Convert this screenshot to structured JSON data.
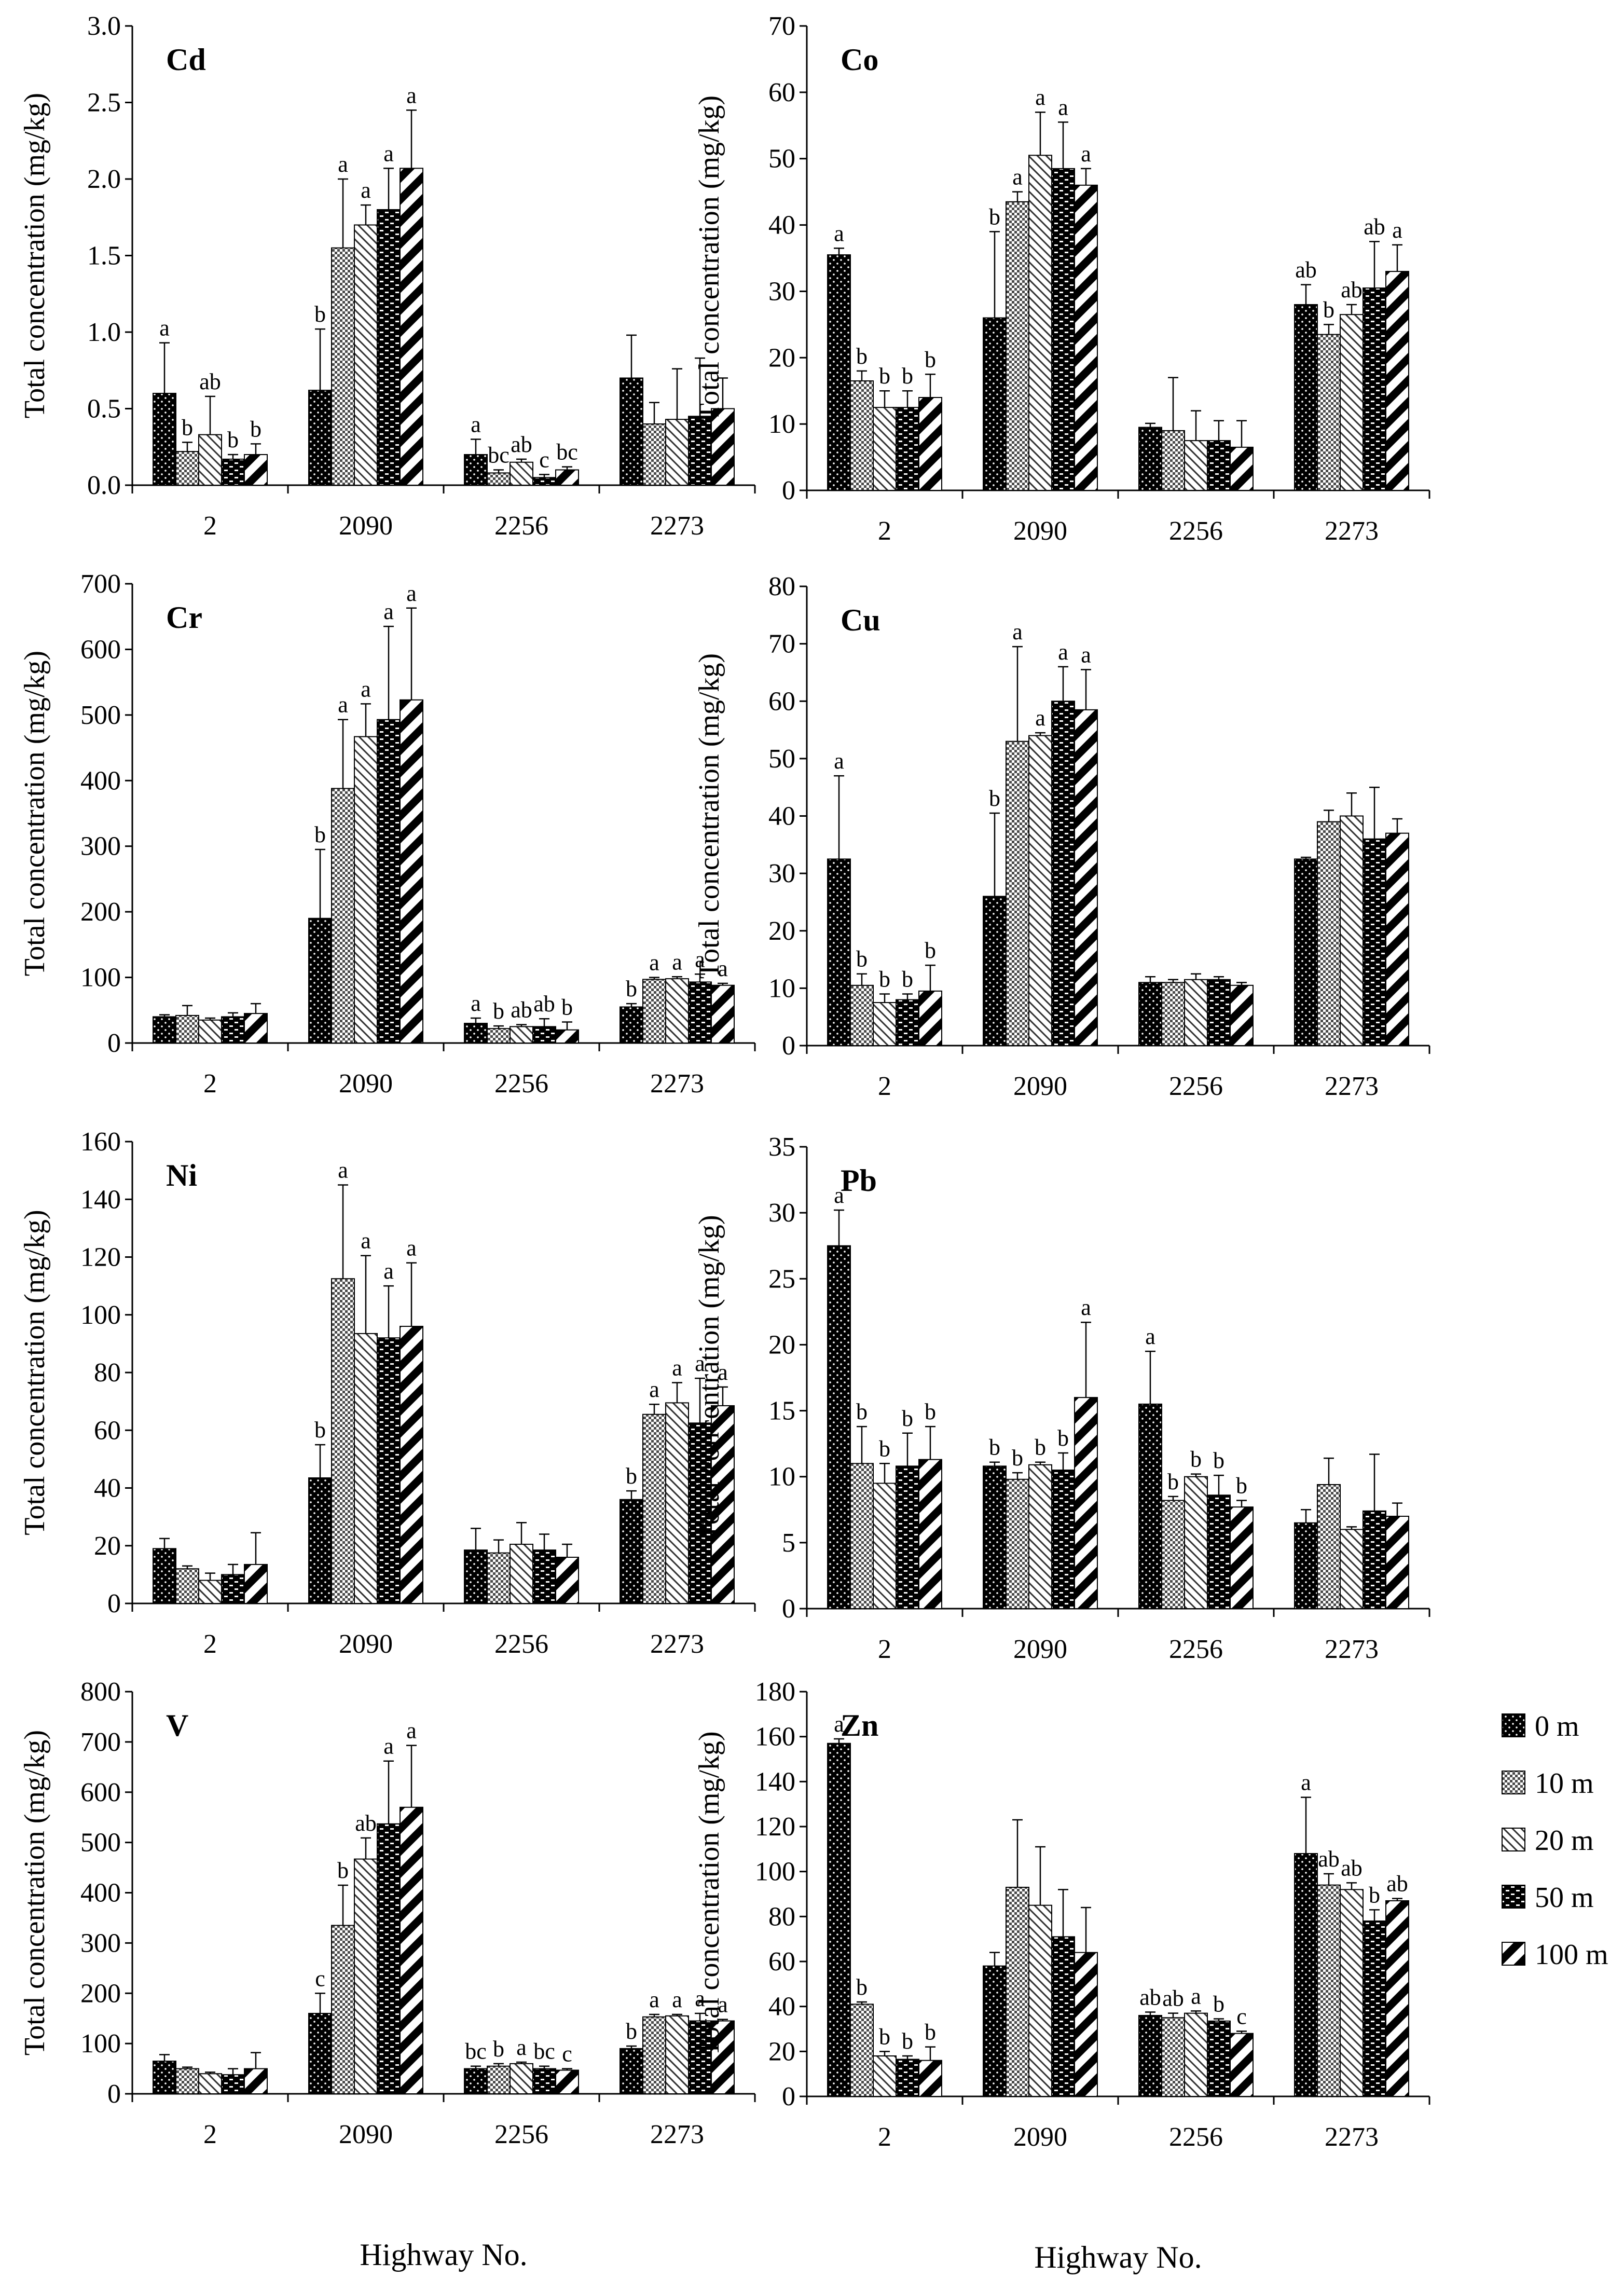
{
  "x_axis_label": "Highway No.",
  "legend": [
    {
      "label": "0 m",
      "pattern": "dots"
    },
    {
      "label": "10 m",
      "pattern": "check"
    },
    {
      "label": "20 m",
      "pattern": "diag"
    },
    {
      "label": "50 m",
      "pattern": "brick"
    },
    {
      "label": "100 m",
      "pattern": "stripe"
    }
  ],
  "chart_data": [
    {
      "type": "bar",
      "title": "Cd",
      "ylabel": "Total concentration (mg/kg)",
      "xlabel": "",
      "categories": [
        "2",
        "2090",
        "2256",
        "2273"
      ],
      "ylim": [
        0,
        3.0
      ],
      "yticks": [
        "0.0",
        "0.5",
        "1.0",
        "1.5",
        "2.0",
        "2.5",
        "3.0"
      ],
      "series": [
        {
          "name": "0 m",
          "values": [
            0.6,
            0.62,
            0.2,
            0.7
          ],
          "errors": [
            0.33,
            0.4,
            0.1,
            0.28
          ],
          "labels": [
            "a",
            "b",
            "a",
            ""
          ]
        },
        {
          "name": "10 m",
          "values": [
            0.22,
            1.55,
            0.08,
            0.4
          ],
          "errors": [
            0.06,
            0.45,
            0.02,
            0.14
          ],
          "labels": [
            "b",
            "a",
            "bc",
            ""
          ]
        },
        {
          "name": "20 m",
          "values": [
            0.33,
            1.7,
            0.15,
            0.43
          ],
          "errors": [
            0.25,
            0.13,
            0.02,
            0.33
          ],
          "labels": [
            "ab",
            "a",
            "ab",
            ""
          ]
        },
        {
          "name": "50 m",
          "values": [
            0.17,
            1.8,
            0.05,
            0.45
          ],
          "errors": [
            0.03,
            0.27,
            0.02,
            0.38
          ],
          "labels": [
            "b",
            "a",
            "c",
            ""
          ]
        },
        {
          "name": "100 m",
          "values": [
            0.2,
            2.07,
            0.1,
            0.5
          ],
          "errors": [
            0.07,
            0.38,
            0.02,
            0.2
          ],
          "labels": [
            "b",
            "a",
            "bc",
            ""
          ]
        }
      ]
    },
    {
      "type": "bar",
      "title": "Co",
      "ylabel": "Total concentration (mg/kg)",
      "xlabel": "",
      "categories": [
        "2",
        "2090",
        "2256",
        "2273"
      ],
      "ylim": [
        0,
        70
      ],
      "yticks": [
        "0",
        "10",
        "20",
        "30",
        "40",
        "50",
        "60",
        "70"
      ],
      "series": [
        {
          "name": "0 m",
          "values": [
            35.5,
            26,
            9.5,
            28
          ],
          "errors": [
            1.0,
            13.0,
            0.6,
            3.0
          ],
          "labels": [
            "a",
            "b",
            "",
            "ab"
          ]
        },
        {
          "name": "10 m",
          "values": [
            16.5,
            43.5,
            9.0,
            23.5
          ],
          "errors": [
            1.5,
            1.5,
            8.0,
            1.5
          ],
          "labels": [
            "b",
            "a",
            "",
            "b"
          ]
        },
        {
          "name": "20 m",
          "values": [
            12.5,
            50.5,
            7.5,
            26.5
          ],
          "errors": [
            2.5,
            6.5,
            4.5,
            1.5
          ],
          "labels": [
            "b",
            "a",
            "",
            "ab"
          ]
        },
        {
          "name": "50 m",
          "values": [
            12.5,
            48.5,
            7.5,
            30.5
          ],
          "errors": [
            2.5,
            7.0,
            3.0,
            7.0
          ],
          "labels": [
            "b",
            "a",
            "",
            "ab"
          ]
        },
        {
          "name": "100 m",
          "values": [
            14.0,
            46.0,
            6.5,
            33.0
          ],
          "errors": [
            3.5,
            2.5,
            4.0,
            4.0
          ],
          "labels": [
            "b",
            "a",
            "",
            "a"
          ]
        }
      ]
    },
    {
      "type": "bar",
      "title": "Cr",
      "ylabel": "Total concentration (mg/kg)",
      "xlabel": "",
      "categories": [
        "2",
        "2090",
        "2256",
        "2273"
      ],
      "ylim": [
        0,
        700
      ],
      "yticks": [
        "0",
        "100",
        "200",
        "300",
        "400",
        "500",
        "600",
        "700"
      ],
      "series": [
        {
          "name": "0 m",
          "values": [
            40,
            190,
            30,
            55
          ],
          "errors": [
            3,
            105,
            8,
            5
          ],
          "labels": [
            "",
            "b",
            "a",
            "b"
          ]
        },
        {
          "name": "10 m",
          "values": [
            42,
            388,
            22,
            97
          ],
          "errors": [
            15,
            105,
            4,
            3
          ],
          "labels": [
            "",
            "a",
            "b",
            "a"
          ]
        },
        {
          "name": "20 m",
          "values": [
            35,
            467,
            25,
            98
          ],
          "errors": [
            3,
            50,
            3,
            3
          ],
          "labels": [
            "",
            "a",
            "ab",
            "a"
          ]
        },
        {
          "name": "50 m",
          "values": [
            40,
            493,
            25,
            93
          ],
          "errors": [
            6,
            142,
            12,
            12
          ],
          "labels": [
            "",
            "a",
            "ab",
            "a"
          ]
        },
        {
          "name": "100 m",
          "values": [
            45,
            523,
            20,
            88
          ],
          "errors": [
            15,
            140,
            12,
            3
          ],
          "labels": [
            "",
            "a",
            "b",
            "a"
          ]
        }
      ]
    },
    {
      "type": "bar",
      "title": "Cu",
      "ylabel": "Total concentration (mg/kg)",
      "xlabel": "",
      "categories": [
        "2",
        "2090",
        "2256",
        "2273"
      ],
      "ylim": [
        0,
        80
      ],
      "yticks": [
        "0",
        "10",
        "20",
        "30",
        "40",
        "50",
        "60",
        "70",
        "80"
      ],
      "series": [
        {
          "name": "0 m",
          "values": [
            32.5,
            26,
            11,
            32.5
          ],
          "errors": [
            14.5,
            14.5,
            1.0,
            0.3
          ],
          "labels": [
            "a",
            "b",
            "",
            ""
          ]
        },
        {
          "name": "10 m",
          "values": [
            10.5,
            53,
            11,
            39
          ],
          "errors": [
            2.0,
            16.5,
            0.5,
            2.0
          ],
          "labels": [
            "b",
            "a",
            "",
            ""
          ]
        },
        {
          "name": "20 m",
          "values": [
            7.5,
            54,
            11.5,
            40
          ],
          "errors": [
            1.5,
            0.5,
            1.0,
            4.0
          ],
          "labels": [
            "b",
            "a",
            "",
            ""
          ]
        },
        {
          "name": "50 m",
          "values": [
            8,
            60,
            11.5,
            36
          ],
          "errors": [
            1.0,
            6.0,
            0.5,
            9.0
          ],
          "labels": [
            "b",
            "a",
            "",
            ""
          ]
        },
        {
          "name": "100 m",
          "values": [
            9.5,
            58.5,
            10.5,
            37
          ],
          "errors": [
            4.5,
            7.0,
            0.5,
            2.5
          ],
          "labels": [
            "b",
            "a",
            "",
            ""
          ]
        }
      ]
    },
    {
      "type": "bar",
      "title": "Ni",
      "ylabel": "Total concentration (mg/kg)",
      "xlabel": "",
      "categories": [
        "2",
        "2090",
        "2256",
        "2273"
      ],
      "ylim": [
        0,
        160
      ],
      "yticks": [
        "0",
        "20",
        "40",
        "60",
        "80",
        "100",
        "120",
        "140",
        "160"
      ],
      "series": [
        {
          "name": "0 m",
          "values": [
            19,
            43.5,
            18.5,
            36
          ],
          "errors": [
            3.5,
            11.5,
            7.5,
            3.0
          ],
          "labels": [
            "",
            "b",
            "",
            "b"
          ]
        },
        {
          "name": "10 m",
          "values": [
            12,
            112.5,
            17.5,
            65.5
          ],
          "errors": [
            1.0,
            32.5,
            4.5,
            3.5
          ],
          "labels": [
            "",
            "a",
            "",
            "a"
          ]
        },
        {
          "name": "20 m",
          "values": [
            8,
            93.5,
            20.5,
            69.5
          ],
          "errors": [
            2.5,
            27.0,
            7.5,
            7.0
          ],
          "labels": [
            "",
            "a",
            "",
            "a"
          ]
        },
        {
          "name": "50 m",
          "values": [
            10,
            92,
            18.5,
            62.5
          ],
          "errors": [
            3.5,
            18.0,
            5.5,
            15.5
          ],
          "labels": [
            "",
            "a",
            "",
            "a"
          ]
        },
        {
          "name": "100 m",
          "values": [
            13.5,
            96,
            16,
            68.5
          ],
          "errors": [
            11.0,
            22.0,
            4.5,
            6.5
          ],
          "labels": [
            "",
            "a",
            "",
            "a"
          ]
        }
      ]
    },
    {
      "type": "bar",
      "title": "Pb",
      "ylabel": "Total concentration (mg/kg)",
      "xlabel": "",
      "categories": [
        "2",
        "2090",
        "2256",
        "2273"
      ],
      "ylim": [
        0,
        35
      ],
      "yticks": [
        "0",
        "5",
        "10",
        "15",
        "20",
        "25",
        "30",
        "35"
      ],
      "series": [
        {
          "name": "0 m",
          "values": [
            27.5,
            10.8,
            15.5,
            6.5
          ],
          "errors": [
            2.7,
            0.3,
            4.0,
            1.0
          ],
          "labels": [
            "a",
            "b",
            "a",
            ""
          ]
        },
        {
          "name": "10 m",
          "values": [
            11.0,
            9.8,
            8.2,
            9.4
          ],
          "errors": [
            2.8,
            0.5,
            0.3,
            2.0
          ],
          "labels": [
            "b",
            "b",
            "b",
            ""
          ]
        },
        {
          "name": "20 m",
          "values": [
            9.5,
            10.9,
            10.0,
            6.0
          ],
          "errors": [
            1.5,
            0.2,
            0.2,
            0.2
          ],
          "labels": [
            "b",
            "b",
            "b",
            ""
          ]
        },
        {
          "name": "50 m",
          "values": [
            10.8,
            10.5,
            8.6,
            7.4
          ],
          "errors": [
            2.5,
            1.3,
            1.5,
            4.3
          ],
          "labels": [
            "b",
            "b",
            "b",
            ""
          ]
        },
        {
          "name": "100 m",
          "values": [
            11.3,
            16.0,
            7.7,
            7.0
          ],
          "errors": [
            2.5,
            5.7,
            0.5,
            1.0
          ],
          "labels": [
            "b",
            "a",
            "b",
            ""
          ]
        }
      ]
    },
    {
      "type": "bar",
      "title": "V",
      "ylabel": "Total concentration (mg/kg)",
      "xlabel": "Highway No.",
      "categories": [
        "2",
        "2090",
        "2256",
        "2273"
      ],
      "ylim": [
        0,
        800
      ],
      "yticks": [
        "0",
        "100",
        "200",
        "300",
        "400",
        "500",
        "600",
        "700",
        "800"
      ],
      "series": [
        {
          "name": "0 m",
          "values": [
            65,
            160,
            50,
            90
          ],
          "errors": [
            13,
            40,
            5,
            5
          ],
          "labels": [
            "",
            "c",
            "bc",
            "b"
          ]
        },
        {
          "name": "10 m",
          "values": [
            50,
            335,
            55,
            153
          ],
          "errors": [
            3,
            80,
            5,
            5
          ],
          "labels": [
            "",
            "b",
            "b",
            "a"
          ]
        },
        {
          "name": "20 m",
          "values": [
            40,
            467,
            60,
            155
          ],
          "errors": [
            3,
            42,
            3,
            3
          ],
          "labels": [
            "",
            "ab",
            "a",
            "a"
          ]
        },
        {
          "name": "50 m",
          "values": [
            38,
            537,
            50,
            145
          ],
          "errors": [
            12,
            125,
            5,
            15
          ],
          "labels": [
            "",
            "a",
            "bc",
            "a"
          ]
        },
        {
          "name": "100 m",
          "values": [
            50,
            570,
            47,
            145
          ],
          "errors": [
            32,
            123,
            3,
            3
          ],
          "labels": [
            "",
            "a",
            "c",
            "a"
          ]
        }
      ]
    },
    {
      "type": "bar",
      "title": "Zn",
      "ylabel": "Total concentration (mg/kg)",
      "xlabel": "Highway No.",
      "categories": [
        "2",
        "2090",
        "2256",
        "2273"
      ],
      "ylim": [
        0,
        180
      ],
      "yticks": [
        "0",
        "20",
        "40",
        "60",
        "80",
        "100",
        "120",
        "140",
        "160",
        "180"
      ],
      "series": [
        {
          "name": "0 m",
          "values": [
            157,
            58,
            36,
            108
          ],
          "errors": [
            2,
            6,
            1.5,
            25
          ],
          "labels": [
            "a",
            "",
            "ab",
            "a"
          ]
        },
        {
          "name": "10 m",
          "values": [
            41,
            93,
            35,
            94
          ],
          "errors": [
            1,
            30,
            2,
            5
          ],
          "labels": [
            "b",
            "",
            "ab",
            "ab"
          ]
        },
        {
          "name": "20 m",
          "values": [
            18,
            85,
            37,
            92
          ],
          "errors": [
            2,
            26,
            1,
            3
          ],
          "labels": [
            "b",
            "",
            "a",
            "ab"
          ]
        },
        {
          "name": "50 m",
          "values": [
            16.5,
            71,
            33.5,
            78
          ],
          "errors": [
            1.5,
            21,
            1,
            5
          ],
          "labels": [
            "b",
            "",
            "b",
            "b"
          ]
        },
        {
          "name": "100 m",
          "values": [
            16,
            64,
            28,
            87
          ],
          "errors": [
            6,
            20,
            1,
            1
          ],
          "labels": [
            "b",
            "",
            "c",
            "ab"
          ]
        }
      ]
    }
  ]
}
